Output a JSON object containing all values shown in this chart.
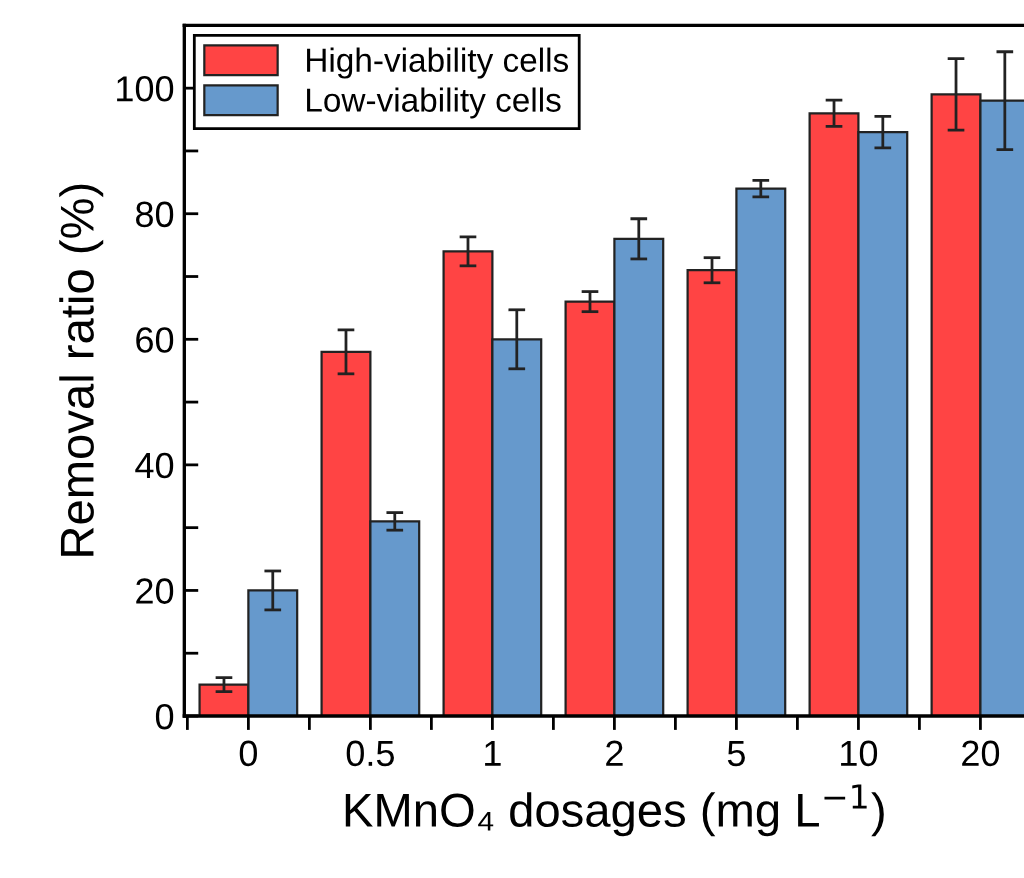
{
  "chart_data": {
    "type": "bar",
    "xlabel": "KMnO₄ dosages (mg L$^{−1}$)",
    "ylabel": "Removal ratio (%)",
    "categories": [
      "0",
      "0.5",
      "1",
      "2",
      "5",
      "10",
      "20"
    ],
    "series": [
      {
        "name": "High-viability cells",
        "color": "#ff4444",
        "values": [
          5,
          58,
          74,
          66,
          71,
          96,
          99
        ],
        "errors": [
          1.1,
          3.5,
          2.3,
          1.6,
          2,
          2.1,
          5.7
        ]
      },
      {
        "name": "Low-viability cells",
        "color": "#6699cc",
        "values": [
          20,
          31,
          60,
          76,
          84,
          93,
          98
        ],
        "errors": [
          3.1,
          1.4,
          4.7,
          3.2,
          1.3,
          2.5,
          7.8
        ]
      }
    ],
    "ylim": [
      0,
      110
    ],
    "yticks": [
      0,
      {
        "value": 10,
        "label": null
      },
      20,
      {
        "value": 30,
        "label": null
      },
      40,
      {
        "value": 50,
        "label": null
      },
      60,
      {
        "value": 70,
        "label": null
      },
      80,
      {
        "value": 90,
        "label": null
      },
      100,
      {
        "value": 110,
        "label": null
      }
    ],
    "legend": "top left",
    "grid": false
  }
}
